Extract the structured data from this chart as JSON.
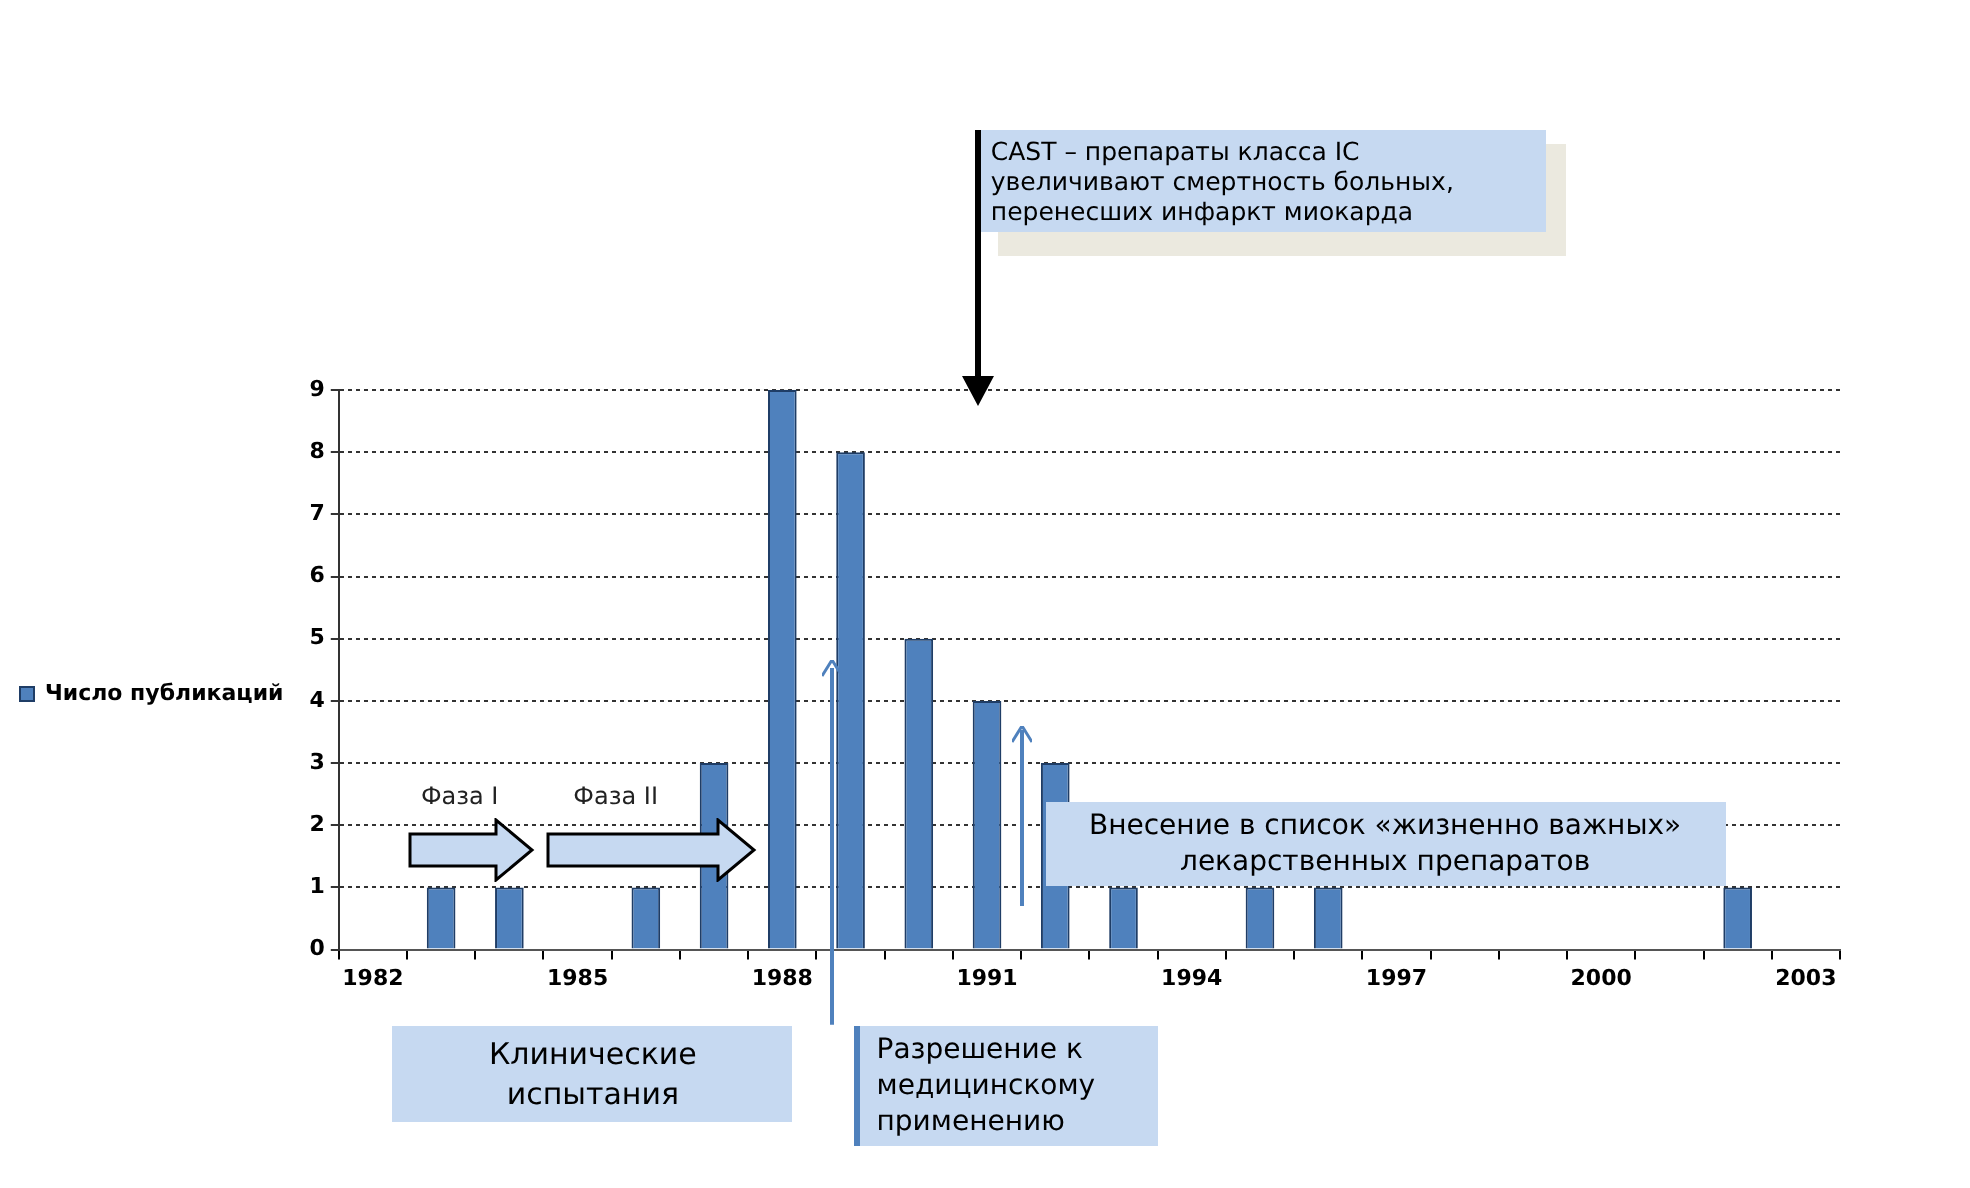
{
  "chart_data": {
    "type": "bar",
    "categories": [
      "1982",
      null,
      null,
      "1985",
      null,
      null,
      "1988",
      null,
      null,
      "1991",
      null,
      null,
      "1994",
      null,
      null,
      "1997",
      null,
      null,
      "2000",
      null,
      null,
      "2003"
    ],
    "series": [
      {
        "name": "Число публикаций",
        "color": "#4f81bd",
        "values": [
          0,
          1,
          1,
          0,
          1,
          3,
          9,
          8,
          5,
          4,
          3,
          1,
          0,
          1,
          1,
          0,
          0,
          0,
          0,
          0,
          1,
          0
        ]
      }
    ],
    "ylim": [
      0,
      9
    ],
    "yticks": [
      0,
      1,
      2,
      3,
      4,
      5,
      6,
      7,
      8,
      9
    ],
    "grid": "y",
    "legend": "left",
    "annotations": [
      "CAST – препараты класса IC увеличивают смертность больных, перенесших инфаркт миокарда",
      "Клинические испытания",
      "Фаза I",
      "Фаза II",
      "Разрешение к медицинскому применению",
      "Внесение в список «жизненно важных» лекарственных препаратов"
    ]
  }
}
